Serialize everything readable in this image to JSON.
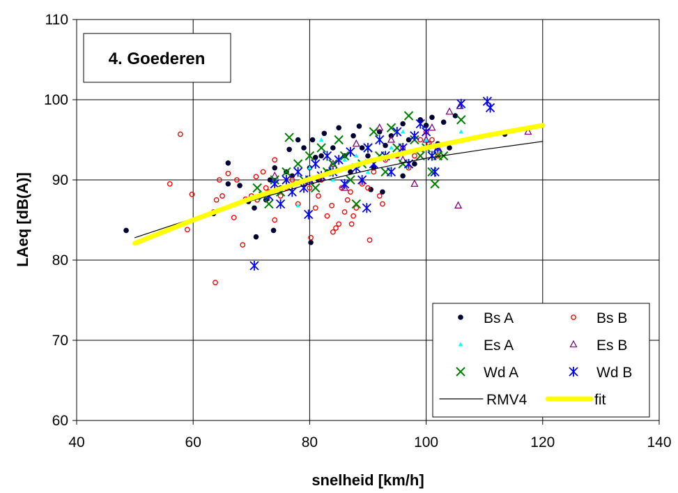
{
  "chart_data": {
    "type": "scatter",
    "title": "4. Goederen",
    "xlabel": "snelheid [km/h]",
    "ylabel": "LAeq [dB(A)]",
    "xlim": [
      40,
      140
    ],
    "ylim": [
      60,
      110
    ],
    "xticks": [
      "40",
      "60",
      "80",
      "100",
      "120",
      "140"
    ],
    "yticks": [
      "60",
      "70",
      "80",
      "90",
      "100",
      "110"
    ],
    "grid": true,
    "legend_position": "bottom-right",
    "series": [
      {
        "name": "Bs A",
        "marker": "dot",
        "color": "#000033",
        "points": [
          [
            48.5,
            83.7
          ],
          [
            63.5,
            85.8
          ],
          [
            66,
            92.1
          ],
          [
            66,
            89.5
          ],
          [
            68,
            89.3
          ],
          [
            69.5,
            87.3
          ],
          [
            70.5,
            86.5
          ],
          [
            70.8,
            82.9
          ],
          [
            72.5,
            87.5
          ],
          [
            73.2,
            90
          ],
          [
            73.8,
            83.7
          ],
          [
            74,
            91.5
          ],
          [
            75,
            89
          ],
          [
            76,
            91
          ],
          [
            76.5,
            93.8
          ],
          [
            77,
            90.5
          ],
          [
            78,
            95
          ],
          [
            79,
            94
          ],
          [
            80,
            91.5
          ],
          [
            80.2,
            82.2
          ],
          [
            80.5,
            95
          ],
          [
            81,
            92.8
          ],
          [
            81.5,
            90
          ],
          [
            82,
            93
          ],
          [
            82.5,
            95.8
          ],
          [
            83,
            91
          ],
          [
            84,
            94
          ],
          [
            85,
            96.5
          ],
          [
            86,
            93
          ],
          [
            87,
            91
          ],
          [
            87.5,
            95.5
          ],
          [
            88.5,
            96.7
          ],
          [
            89,
            94
          ],
          [
            90,
            93
          ],
          [
            91,
            91.5
          ],
          [
            92,
            96
          ],
          [
            93,
            94.3
          ],
          [
            94,
            95.5
          ],
          [
            95,
            93
          ],
          [
            96,
            97
          ],
          [
            97,
            95
          ],
          [
            98,
            92
          ],
          [
            99,
            97.5
          ],
          [
            100,
            96.8
          ],
          [
            101,
            97.8
          ],
          [
            102,
            94.5
          ],
          [
            103,
            97.2
          ],
          [
            104,
            94
          ],
          [
            105,
            98
          ],
          [
            113.5,
            95.7
          ],
          [
            90.5,
            88.8
          ],
          [
            96,
            90.5
          ],
          [
            92.5,
            88.5
          ]
        ]
      },
      {
        "name": "Bs B",
        "marker": "open-circle",
        "color": "#ff0000",
        "points": [
          [
            56,
            89.5
          ],
          [
            57.8,
            95.7
          ],
          [
            59,
            83.8
          ],
          [
            59.8,
            88.2
          ],
          [
            63.5,
            86
          ],
          [
            63.8,
            77.2
          ],
          [
            64,
            87.5
          ],
          [
            64.5,
            90
          ],
          [
            65,
            88
          ],
          [
            66,
            90.8
          ],
          [
            67,
            85.3
          ],
          [
            67.5,
            90
          ],
          [
            68.5,
            81.9
          ],
          [
            69,
            87.6
          ],
          [
            70,
            88
          ],
          [
            70.8,
            90.4
          ],
          [
            71,
            87.5
          ],
          [
            72,
            91
          ],
          [
            72.5,
            89
          ],
          [
            73,
            88.5
          ],
          [
            74,
            85
          ],
          [
            74,
            92.5
          ],
          [
            75,
            88
          ],
          [
            76,
            89
          ],
          [
            77,
            90
          ],
          [
            78,
            87
          ],
          [
            79,
            89.5
          ],
          [
            80,
            89
          ],
          [
            80.2,
            82.8
          ],
          [
            81,
            86.5
          ],
          [
            81.5,
            88
          ],
          [
            82,
            90
          ],
          [
            83,
            85.5
          ],
          [
            83.8,
            86.8
          ],
          [
            84,
            83.5
          ],
          [
            84.5,
            84
          ],
          [
            85,
            84.5
          ],
          [
            85.5,
            89
          ],
          [
            86,
            86
          ],
          [
            86.5,
            87.5
          ],
          [
            87,
            88.5
          ],
          [
            87.2,
            84.5
          ],
          [
            87.5,
            85.5
          ],
          [
            88,
            86.5
          ],
          [
            89,
            89.5
          ],
          [
            90,
            89
          ],
          [
            90.3,
            82.5
          ],
          [
            91,
            91
          ],
          [
            92,
            88
          ],
          [
            92.5,
            87
          ],
          [
            93,
            92.5
          ],
          [
            95,
            93
          ],
          [
            96,
            94
          ],
          [
            97,
            91.5
          ],
          [
            98,
            93
          ],
          [
            99,
            95
          ],
          [
            100,
            96
          ],
          [
            100.5,
            94.5
          ],
          [
            101,
            95
          ],
          [
            102,
            93
          ]
        ]
      },
      {
        "name": "Es A",
        "marker": "triangle-filled",
        "color": "#00ffff",
        "points": [
          [
            78,
            86.8
          ],
          [
            80,
            91.5
          ],
          [
            82,
            95
          ],
          [
            84,
            90
          ],
          [
            86,
            92.5
          ],
          [
            88,
            93
          ],
          [
            90,
            91
          ],
          [
            92,
            95
          ],
          [
            94,
            94
          ],
          [
            96,
            96
          ],
          [
            98,
            93.5
          ],
          [
            100,
            95
          ],
          [
            106,
            96
          ]
        ]
      },
      {
        "name": "Es B",
        "marker": "open-triangle",
        "color": "#800080",
        "points": [
          [
            74,
            90.5
          ],
          [
            80,
            90
          ],
          [
            84,
            92
          ],
          [
            86,
            89
          ],
          [
            88,
            94.5
          ],
          [
            92,
            96.5
          ],
          [
            94,
            95
          ],
          [
            96,
            92.5
          ],
          [
            98,
            89.5
          ],
          [
            100,
            95
          ],
          [
            101,
            96.5
          ],
          [
            102,
            94
          ],
          [
            104,
            98.5
          ],
          [
            105.8,
            99.2
          ],
          [
            105.5,
            86.8
          ],
          [
            117.5,
            96
          ]
        ]
      },
      {
        "name": "Wd A",
        "marker": "x",
        "color": "#008000",
        "points": [
          [
            71,
            89
          ],
          [
            72,
            88
          ],
          [
            73,
            87
          ],
          [
            74,
            90
          ],
          [
            75,
            88.5
          ],
          [
            76,
            91
          ],
          [
            76.5,
            95.3
          ],
          [
            78,
            92
          ],
          [
            79,
            90
          ],
          [
            80,
            93
          ],
          [
            81,
            89
          ],
          [
            82,
            94
          ],
          [
            83,
            91
          ],
          [
            84,
            92
          ],
          [
            85,
            95
          ],
          [
            86,
            93
          ],
          [
            87,
            90
          ],
          [
            88,
            87
          ],
          [
            89,
            92
          ],
          [
            90,
            94
          ],
          [
            91,
            96
          ],
          [
            92,
            93
          ],
          [
            93,
            91
          ],
          [
            94,
            96.5
          ],
          [
            95,
            94
          ],
          [
            96,
            92
          ],
          [
            97,
            98
          ],
          [
            98,
            95
          ],
          [
            99,
            93
          ],
          [
            100,
            94
          ],
          [
            101,
            91
          ],
          [
            101.5,
            89.5
          ],
          [
            102,
            93
          ],
          [
            103,
            93
          ],
          [
            106,
            97.5
          ]
        ]
      },
      {
        "name": "Wd B",
        "marker": "asterisk",
        "color": "#0000ff",
        "points": [
          [
            70.5,
            79.3
          ],
          [
            73,
            88
          ],
          [
            74,
            89.5
          ],
          [
            75,
            87
          ],
          [
            76,
            90
          ],
          [
            77,
            88.5
          ],
          [
            78,
            91
          ],
          [
            79,
            89
          ],
          [
            79.8,
            85.7
          ],
          [
            80,
            90
          ],
          [
            81,
            92
          ],
          [
            82,
            90.5
          ],
          [
            83,
            93
          ],
          [
            84,
            91
          ],
          [
            85,
            92.5
          ],
          [
            86,
            89.5
          ],
          [
            87,
            93.5
          ],
          [
            88,
            91.5
          ],
          [
            89,
            90
          ],
          [
            89.8,
            86.5
          ],
          [
            90,
            94
          ],
          [
            91,
            92
          ],
          [
            92,
            95
          ],
          [
            93,
            93
          ],
          [
            94,
            91
          ],
          [
            95,
            96
          ],
          [
            96,
            94
          ],
          [
            97,
            92
          ],
          [
            98,
            95.5
          ],
          [
            99,
            97
          ],
          [
            100,
            96
          ],
          [
            101,
            93
          ],
          [
            101.5,
            91
          ],
          [
            102,
            94
          ],
          [
            106,
            99.5
          ],
          [
            110.5,
            99.8
          ],
          [
            111,
            99
          ]
        ]
      },
      {
        "name": "RMV4",
        "marker": "line",
        "color": "#000000",
        "points": [
          [
            50,
            82.8
          ],
          [
            60,
            85.2
          ],
          [
            70,
            87.4
          ],
          [
            80,
            89.5
          ],
          [
            90,
            91.2
          ],
          [
            100,
            92.7
          ],
          [
            110,
            93.8
          ],
          [
            120,
            94.8
          ]
        ]
      },
      {
        "name": "fit",
        "marker": "line",
        "color": "#ffff00",
        "points": [
          [
            50,
            82.1
          ],
          [
            60,
            85.0
          ],
          [
            70,
            87.7
          ],
          [
            80,
            90.1
          ],
          [
            90,
            92.3
          ],
          [
            100,
            94.0
          ],
          [
            110,
            95.5
          ],
          [
            120,
            96.8
          ]
        ]
      }
    ]
  }
}
